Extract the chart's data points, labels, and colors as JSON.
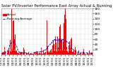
{
  "title": "Solar PV/Inverter Performance East Array Actual & Running Average Power Output",
  "legend_actual": "Actual",
  "legend_avg": "Running Average",
  "background_color": "#ffffff",
  "plot_bg_color": "#ffffff",
  "grid_color": "#c0c0c0",
  "bar_color": "#ff0000",
  "avg_line_color": "#0000ee",
  "ref_line_color": "#ffffff",
  "ylim": [
    0,
    180
  ],
  "ytick_values": [
    20,
    40,
    60,
    80,
    100,
    120,
    140,
    160,
    180
  ],
  "ytick_labels": [
    "20",
    "40",
    "60",
    "80",
    "100",
    "120",
    "140",
    "160",
    "180"
  ],
  "num_points": 700,
  "title_fontsize": 3.8,
  "tick_fontsize": 3.2,
  "legend_fontsize": 3.0,
  "ref_line_y": 20
}
